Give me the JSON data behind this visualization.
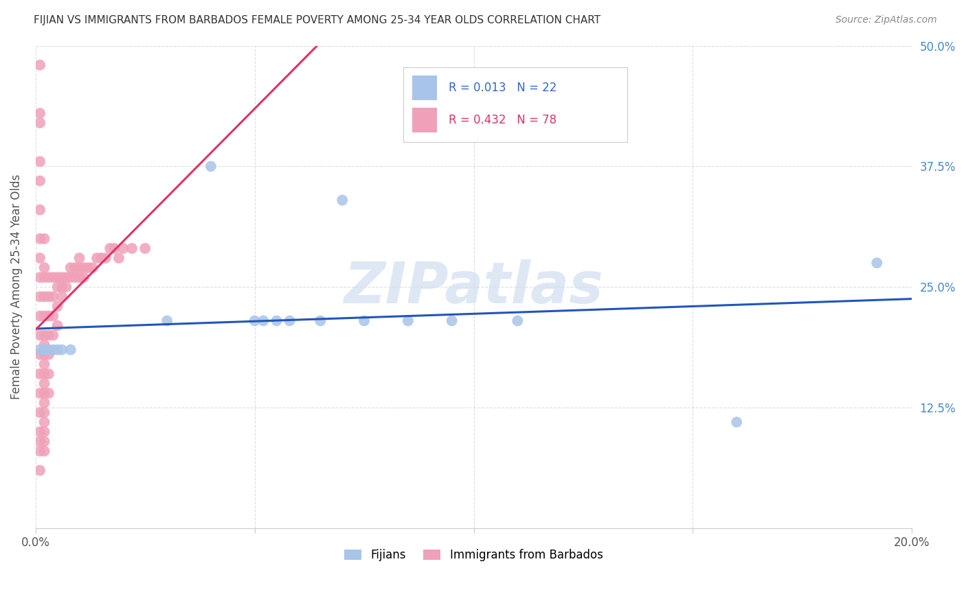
{
  "title": "FIJIAN VS IMMIGRANTS FROM BARBADOS FEMALE POVERTY AMONG 25-34 YEAR OLDS CORRELATION CHART",
  "source": "Source: ZipAtlas.com",
  "ylabel": "Female Poverty Among 25-34 Year Olds",
  "xlim": [
    0.0,
    0.2
  ],
  "ylim": [
    0.0,
    0.5
  ],
  "xticks": [
    0.0,
    0.05,
    0.1,
    0.15,
    0.2
  ],
  "yticks": [
    0.0,
    0.125,
    0.25,
    0.375,
    0.5
  ],
  "ytick_labels": [
    "",
    "12.5%",
    "25.0%",
    "37.5%",
    "50.0%"
  ],
  "xtick_labels": [
    "0.0%",
    "",
    "",
    "",
    "20.0%"
  ],
  "fijians_color": "#a8c4e8",
  "barbados_color": "#f0a0b8",
  "fijians_line_color": "#2255bb",
  "barbados_line_color": "#dd3366",
  "watermark_color": "#d0dff0",
  "watermark": "ZIPatlas",
  "fijians_x": [
    0.001,
    0.002,
    0.002,
    0.003,
    0.004,
    0.005,
    0.006,
    0.008,
    0.03,
    0.04,
    0.05,
    0.052,
    0.055,
    0.058,
    0.065,
    0.07,
    0.075,
    0.085,
    0.095,
    0.11,
    0.16,
    0.192
  ],
  "fijians_y": [
    0.185,
    0.185,
    0.185,
    0.185,
    0.185,
    0.185,
    0.185,
    0.185,
    0.215,
    0.375,
    0.215,
    0.215,
    0.215,
    0.215,
    0.215,
    0.34,
    0.215,
    0.215,
    0.215,
    0.215,
    0.11,
    0.275
  ],
  "barbados_x": [
    0.001,
    0.001,
    0.001,
    0.001,
    0.001,
    0.001,
    0.001,
    0.001,
    0.001,
    0.001,
    0.001,
    0.001,
    0.001,
    0.001,
    0.001,
    0.001,
    0.001,
    0.001,
    0.001,
    0.001,
    0.002,
    0.002,
    0.002,
    0.002,
    0.002,
    0.002,
    0.002,
    0.002,
    0.002,
    0.002,
    0.002,
    0.002,
    0.002,
    0.002,
    0.002,
    0.002,
    0.002,
    0.002,
    0.003,
    0.003,
    0.003,
    0.003,
    0.003,
    0.003,
    0.003,
    0.004,
    0.004,
    0.004,
    0.004,
    0.005,
    0.005,
    0.005,
    0.005,
    0.006,
    0.006,
    0.006,
    0.007,
    0.007,
    0.008,
    0.008,
    0.009,
    0.009,
    0.01,
    0.01,
    0.01,
    0.011,
    0.011,
    0.012,
    0.013,
    0.014,
    0.015,
    0.016,
    0.017,
    0.018,
    0.019,
    0.02,
    0.022,
    0.025
  ],
  "barbados_y": [
    0.48,
    0.43,
    0.42,
    0.38,
    0.36,
    0.33,
    0.3,
    0.28,
    0.26,
    0.24,
    0.22,
    0.2,
    0.18,
    0.16,
    0.14,
    0.12,
    0.1,
    0.09,
    0.08,
    0.06,
    0.3,
    0.27,
    0.26,
    0.24,
    0.22,
    0.2,
    0.19,
    0.18,
    0.17,
    0.16,
    0.15,
    0.14,
    0.13,
    0.12,
    0.11,
    0.1,
    0.09,
    0.08,
    0.26,
    0.24,
    0.22,
    0.2,
    0.18,
    0.16,
    0.14,
    0.26,
    0.24,
    0.22,
    0.2,
    0.26,
    0.25,
    0.23,
    0.21,
    0.26,
    0.25,
    0.24,
    0.26,
    0.25,
    0.27,
    0.26,
    0.27,
    0.26,
    0.28,
    0.27,
    0.26,
    0.27,
    0.26,
    0.27,
    0.27,
    0.28,
    0.28,
    0.28,
    0.29,
    0.29,
    0.28,
    0.29,
    0.29,
    0.29
  ]
}
